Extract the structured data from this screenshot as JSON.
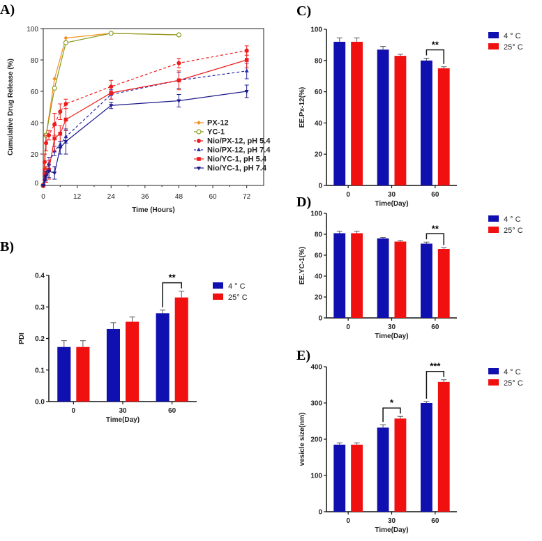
{
  "chart_data": [
    {
      "panel": "A)",
      "type": "line",
      "xlabel": "Time (Hours)",
      "ylabel": "Cumulative Drug Release (%)",
      "xlim": [
        0,
        78
      ],
      "ylim": [
        0,
        100
      ],
      "xticks": [
        0,
        12,
        24,
        36,
        48,
        60,
        72
      ],
      "yticks": [
        0,
        20,
        40,
        60,
        80,
        100
      ],
      "legend_position": "bottom-right",
      "series": [
        {
          "name": "PX-12",
          "color": "#f5901e",
          "marker": "diamond",
          "dash": false,
          "x": [
            0,
            0.5,
            1,
            4,
            8,
            24,
            48
          ],
          "y": [
            0,
            11,
            32,
            68,
            94,
            97,
            96
          ],
          "err": [
            0,
            0,
            1,
            0,
            0,
            0,
            0
          ]
        },
        {
          "name": "YC-1",
          "color": "#8a9a1e",
          "marker": "open-circle",
          "dash": false,
          "x": [
            0,
            1,
            4,
            8,
            24,
            48
          ],
          "y": [
            0,
            32,
            62,
            91,
            97,
            96
          ],
          "err": [
            0,
            1,
            0,
            0,
            0,
            0
          ]
        },
        {
          "name": "Nio/PX-12, pH 5.4",
          "color": "#ee1c1c",
          "marker": "circle",
          "dash": true,
          "x": [
            0,
            0.5,
            1,
            2,
            4,
            6,
            8,
            24,
            48,
            72
          ],
          "y": [
            0,
            15,
            27,
            32,
            39,
            47,
            52,
            63,
            78,
            86
          ],
          "err": [
            0,
            5,
            5,
            3,
            7,
            5,
            3,
            4,
            3,
            3
          ]
        },
        {
          "name": "Nio/PX-12, pH 7.4",
          "color": "#2a2aa8",
          "marker": "triangle",
          "dash": true,
          "x": [
            0,
            0.5,
            1,
            2,
            4,
            6,
            8,
            24,
            48,
            72
          ],
          "y": [
            0,
            5,
            8,
            14,
            22,
            26,
            31,
            58,
            67,
            73
          ],
          "err": [
            0,
            3,
            4,
            4,
            3,
            2,
            4,
            3,
            5,
            5
          ]
        },
        {
          "name": "Nio/YC-1, pH 5.4",
          "color": "#ee1c1c",
          "marker": "square",
          "dash": false,
          "x": [
            0,
            0.5,
            1,
            2,
            4,
            6,
            8,
            24,
            48,
            72
          ],
          "y": [
            0,
            7,
            7,
            10,
            30,
            33,
            42,
            59,
            67,
            80
          ],
          "err": [
            0,
            4,
            5,
            6,
            8,
            5,
            7,
            4,
            6,
            5
          ]
        },
        {
          "name": "Nio/YC-1, pH 7.4",
          "color": "#1a1a8c",
          "marker": "triangle-down",
          "dash": false,
          "x": [
            0,
            0.5,
            1,
            2,
            4,
            6,
            8,
            24,
            48,
            72
          ],
          "y": [
            0,
            3,
            6,
            9,
            8,
            24,
            28,
            51,
            54,
            60
          ],
          "err": [
            0,
            3,
            3,
            4,
            4,
            4,
            8,
            2,
            4,
            4
          ]
        }
      ]
    },
    {
      "panel": "B)",
      "type": "bar",
      "xlabel": "Time(Day)",
      "ylabel": "PDI",
      "categories": [
        "0",
        "30",
        "60"
      ],
      "ylim": [
        0,
        0.4
      ],
      "yticks": [
        "0.0",
        "0.1",
        "0.2",
        "0.3",
        "0.4"
      ],
      "legend_position": "right",
      "series": [
        {
          "name": "4 ° C",
          "color": "#1010b0",
          "values": [
            0.173,
            0.23,
            0.28
          ],
          "err": [
            0.02,
            0.02,
            0.01
          ]
        },
        {
          "name": "25° C",
          "color": "#f01010",
          "values": [
            0.173,
            0.253,
            0.33
          ],
          "err": [
            0.02,
            0.015,
            0.02
          ]
        }
      ],
      "significance": [
        {
          "category": "60",
          "label": "**"
        }
      ]
    },
    {
      "panel": "C)",
      "type": "bar",
      "xlabel": "Time(Day)",
      "ylabel": "EE.Px-12(%)",
      "categories": [
        "0",
        "30",
        "60"
      ],
      "ylim": [
        0,
        100
      ],
      "yticks": [
        "0",
        "20",
        "40",
        "60",
        "80",
        "100"
      ],
      "legend_position": "right",
      "series": [
        {
          "name": "4 ° C",
          "color": "#1010b0",
          "values": [
            92,
            87,
            80
          ],
          "err": [
            2.5,
            2,
            1.5
          ]
        },
        {
          "name": "25° C",
          "color": "#f01010",
          "values": [
            92,
            83,
            75
          ],
          "err": [
            2.5,
            1,
            1
          ]
        }
      ],
      "significance": [
        {
          "category": "60",
          "label": "**"
        }
      ]
    },
    {
      "panel": "D)",
      "type": "bar",
      "xlabel": "Time(Day)",
      "ylabel": "EE.YC-1(%)",
      "categories": [
        "0",
        "30",
        "60"
      ],
      "ylim": [
        0,
        100
      ],
      "yticks": [
        "0",
        "20",
        "40",
        "60",
        "80",
        "100"
      ],
      "legend_position": "right",
      "series": [
        {
          "name": "4 ° C",
          "color": "#1010b0",
          "values": [
            81,
            76,
            71
          ],
          "err": [
            2,
            1,
            1.5
          ]
        },
        {
          "name": "25° C",
          "color": "#f01010",
          "values": [
            81,
            73,
            66
          ],
          "err": [
            2,
            1,
            1
          ]
        }
      ],
      "significance": [
        {
          "category": "60",
          "label": "**"
        }
      ]
    },
    {
      "panel": "E)",
      "type": "bar",
      "xlabel": "Time(Day)",
      "ylabel": "vesicle size(nm)",
      "categories": [
        "0",
        "30",
        "60"
      ],
      "ylim": [
        0,
        400
      ],
      "yticks": [
        "0",
        "100",
        "200",
        "300",
        "400"
      ],
      "legend_position": "right",
      "series": [
        {
          "name": "4 ° C",
          "color": "#1010b0",
          "values": [
            185,
            232,
            300
          ],
          "err": [
            5,
            8,
            4
          ]
        },
        {
          "name": "25° C",
          "color": "#f01010",
          "values": [
            185,
            257,
            358
          ],
          "err": [
            5,
            6,
            6
          ]
        }
      ],
      "significance": [
        {
          "category": "30",
          "label": "*"
        },
        {
          "category": "60",
          "label": "***"
        }
      ]
    }
  ]
}
